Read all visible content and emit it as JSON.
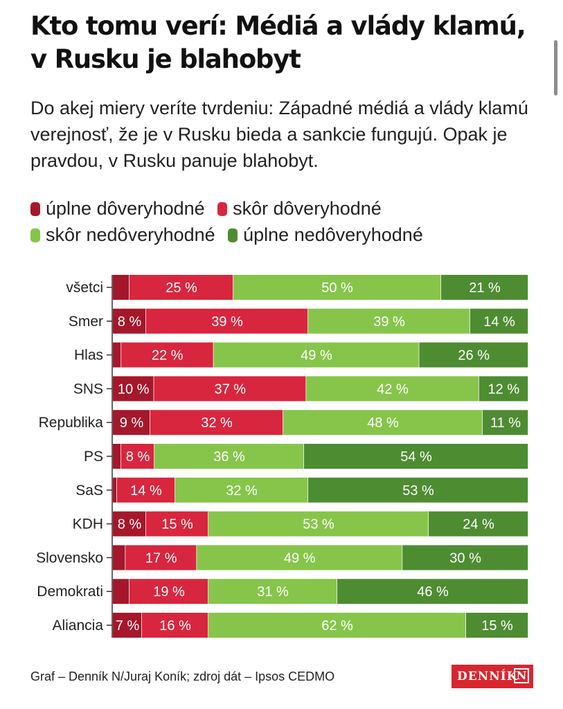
{
  "header": {
    "title": "Kto tomu verí: Médiá a vlády klamú, v Rusku je blahobyt",
    "subtitle": "Do akej miery veríte tvrdeniu: Západné médiá a vlády klamú verejnosť, že je v Rusku bieda a sankcie fungujú. Opak je pravdou, v Rusku panuje blahobyt."
  },
  "legend": [
    {
      "label": "úplne dôveryhodné",
      "color": "#a5172b"
    },
    {
      "label": "skôr dôveryhodné",
      "color": "#d8263e"
    },
    {
      "label": "skôr nedôveryhodné",
      "color": "#86c54a"
    },
    {
      "label": "úplne nedôveryhodné",
      "color": "#4e8c32"
    }
  ],
  "chart_data": {
    "type": "bar",
    "orientation": "horizontal",
    "stacked": true,
    "title": "",
    "xlabel": "",
    "ylabel": "",
    "value_suffix": " %",
    "categories": [
      "všetci",
      "Smer",
      "Hlas",
      "SNS",
      "Republika",
      "PS",
      "SaS",
      "KDH",
      "Slovensko",
      "Demokrati",
      "Aliancia"
    ],
    "series": [
      {
        "name": "úplne dôveryhodné",
        "color": "#a5172b",
        "values": [
          4,
          8,
          2,
          10,
          9,
          2,
          1,
          8,
          3,
          4,
          7
        ],
        "labels": [
          "",
          "8 %",
          "",
          "10 %",
          "9 %",
          "",
          "",
          "8 %",
          "",
          "",
          "7 %"
        ]
      },
      {
        "name": "skôr dôveryhodné",
        "color": "#d8263e",
        "values": [
          25,
          39,
          22,
          37,
          32,
          8,
          14,
          15,
          17,
          19,
          16
        ],
        "labels": [
          "25 %",
          "39 %",
          "22 %",
          "37 %",
          "32 %",
          "8 %",
          "14 %",
          "15 %",
          "17 %",
          "19 %",
          "16 %"
        ]
      },
      {
        "name": "skôr nedôveryhodné",
        "color": "#86c54a",
        "values": [
          50,
          39,
          49,
          42,
          48,
          36,
          32,
          53,
          49,
          31,
          62
        ],
        "labels": [
          "50 %",
          "39 %",
          "49 %",
          "42 %",
          "48 %",
          "36 %",
          "32 %",
          "53 %",
          "49 %",
          "31 %",
          "62 %"
        ]
      },
      {
        "name": "úplne nedôveryhodné",
        "color": "#4e8c32",
        "values": [
          21,
          14,
          26,
          12,
          11,
          54,
          53,
          24,
          30,
          46,
          15
        ],
        "labels": [
          "21 %",
          "14 %",
          "26 %",
          "12 %",
          "11 %",
          "54 %",
          "53 %",
          "24 %",
          "30 %",
          "46 %",
          "15 %"
        ]
      }
    ]
  },
  "footer": {
    "credit": "Graf – Denník N/Juraj Koník; zdroj dát – Ipsos CEDMO",
    "logo_text": "DENNÍK",
    "logo_mark": "N"
  }
}
